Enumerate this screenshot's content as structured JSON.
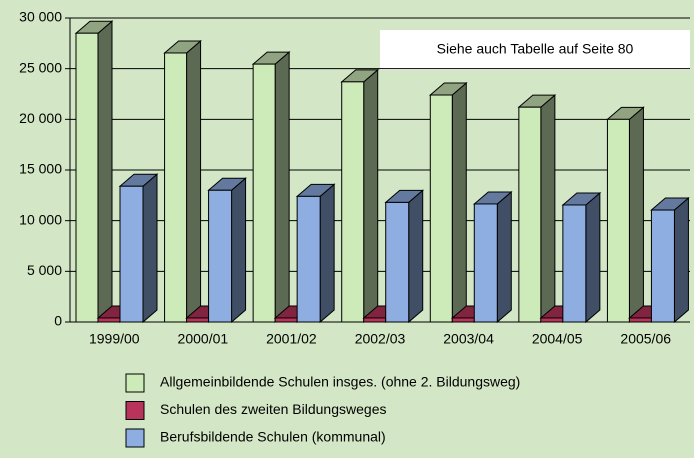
{
  "chart_data": {
    "type": "bar3d",
    "annotation": "Siehe auch  Tabelle auf Seite 80",
    "categories": [
      "1999/00",
      "2000/01",
      "2001/02",
      "2002/03",
      "2003/04",
      "2004/05",
      "2005/06"
    ],
    "series": [
      {
        "name": "Allgemeinbildende Schulen insges. (ohne 2. Bildungsweg)",
        "color": "#cdeab9",
        "values": [
          28500,
          26550,
          25450,
          23700,
          22400,
          21200,
          20000
        ]
      },
      {
        "name": "Schulen des zweiten Bildungsweges",
        "color": "#b8345a",
        "values": [
          400,
          400,
          400,
          400,
          400,
          400,
          400
        ]
      },
      {
        "name": "Berufsbildende Schulen (kommunal)",
        "color": "#8eaee2",
        "values": [
          13400,
          13000,
          12400,
          11800,
          11650,
          11550,
          11050
        ]
      }
    ],
    "ylim": [
      0,
      30000
    ],
    "yticks": [
      {
        "value": 0,
        "label": "0"
      },
      {
        "value": 5000,
        "label": "5 000"
      },
      {
        "value": 10000,
        "label": "10 000"
      },
      {
        "value": 15000,
        "label": "15 000"
      },
      {
        "value": 20000,
        "label": "20 000"
      },
      {
        "value": 25000,
        "label": "25 000"
      },
      {
        "value": 30000,
        "label": "30 000"
      }
    ],
    "grid": true
  }
}
